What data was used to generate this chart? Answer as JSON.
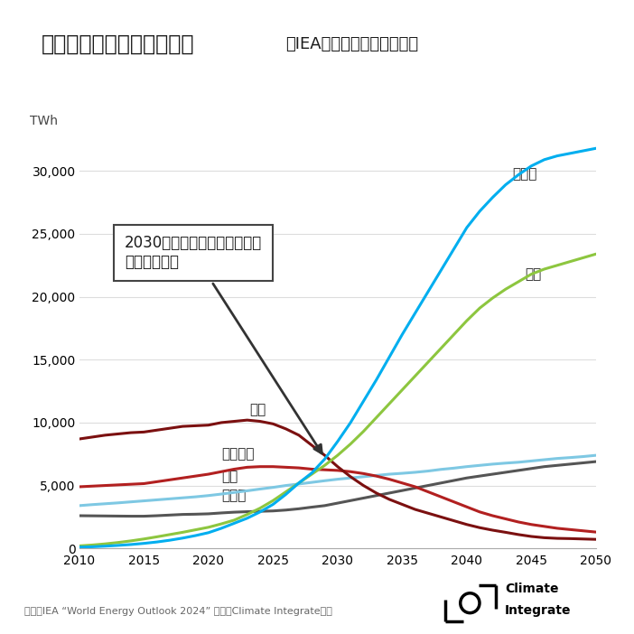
{
  "title_main": "世界の電源別の発電電力量",
  "title_sub": "（IEAネットゼロシナリオ）",
  "ylabel": "TWh",
  "source": "出典：IEA “World Energy Outlook 2024” を基にClimate Integrate作成",
  "years": [
    2010,
    2011,
    2012,
    2013,
    2014,
    2015,
    2016,
    2017,
    2018,
    2019,
    2020,
    2021,
    2022,
    2023,
    2024,
    2025,
    2026,
    2027,
    2028,
    2029,
    2030,
    2031,
    2032,
    2033,
    2034,
    2035,
    2036,
    2037,
    2038,
    2039,
    2040,
    2041,
    2042,
    2043,
    2044,
    2045,
    2046,
    2047,
    2048,
    2049,
    2050
  ],
  "solar": [
    100,
    130,
    180,
    240,
    310,
    400,
    510,
    650,
    820,
    1020,
    1250,
    1600,
    2000,
    2400,
    2900,
    3500,
    4300,
    5200,
    6000,
    7100,
    8500,
    10000,
    11700,
    13400,
    15200,
    17000,
    18700,
    20400,
    22100,
    23800,
    25500,
    26800,
    27900,
    28900,
    29700,
    30400,
    30900,
    31200,
    31400,
    31600,
    31800
  ],
  "wind": [
    200,
    270,
    360,
    470,
    600,
    750,
    920,
    1100,
    1280,
    1480,
    1680,
    1950,
    2250,
    2700,
    3200,
    3800,
    4500,
    5200,
    5900,
    6600,
    7400,
    8300,
    9300,
    10400,
    11500,
    12600,
    13700,
    14800,
    15900,
    17000,
    18100,
    19100,
    19900,
    20600,
    21200,
    21800,
    22200,
    22500,
    22800,
    23100,
    23400
  ],
  "coal": [
    8700,
    8850,
    9000,
    9100,
    9200,
    9250,
    9400,
    9550,
    9700,
    9750,
    9800,
    10000,
    10100,
    10200,
    10100,
    9900,
    9500,
    9000,
    8200,
    7400,
    6500,
    5700,
    5000,
    4400,
    3900,
    3500,
    3100,
    2800,
    2500,
    2200,
    1900,
    1650,
    1450,
    1280,
    1100,
    950,
    850,
    800,
    780,
    750,
    720
  ],
  "gas": [
    4900,
    4950,
    5000,
    5050,
    5100,
    5150,
    5300,
    5450,
    5600,
    5750,
    5900,
    6100,
    6300,
    6450,
    6500,
    6500,
    6450,
    6400,
    6300,
    6250,
    6200,
    6100,
    5950,
    5750,
    5500,
    5200,
    4900,
    4500,
    4100,
    3700,
    3300,
    2900,
    2600,
    2350,
    2100,
    1900,
    1750,
    1600,
    1500,
    1400,
    1300
  ],
  "hydro": [
    3400,
    3480,
    3550,
    3620,
    3700,
    3780,
    3860,
    3940,
    4020,
    4100,
    4200,
    4320,
    4450,
    4580,
    4720,
    4850,
    5000,
    5120,
    5250,
    5380,
    5500,
    5600,
    5700,
    5800,
    5900,
    5970,
    6050,
    6150,
    6280,
    6380,
    6500,
    6600,
    6700,
    6780,
    6850,
    6950,
    7050,
    7150,
    7220,
    7300,
    7400
  ],
  "nuclear": [
    2600,
    2590,
    2580,
    2570,
    2560,
    2560,
    2600,
    2650,
    2700,
    2720,
    2750,
    2820,
    2880,
    2920,
    2950,
    2980,
    3050,
    3150,
    3280,
    3400,
    3600,
    3800,
    4000,
    4200,
    4400,
    4600,
    4800,
    5000,
    5200,
    5400,
    5600,
    5750,
    5900,
    6050,
    6200,
    6350,
    6500,
    6600,
    6700,
    6800,
    6900
  ],
  "solar_color": "#00AEEF",
  "wind_color": "#8DC63F",
  "coal_color": "#7B1010",
  "gas_color": "#B22020",
  "hydro_color": "#7EC8E3",
  "nuclear_color": "#555555",
  "ylim": [
    0,
    32000
  ],
  "yticks": [
    0,
    5000,
    10000,
    15000,
    20000,
    25000,
    30000
  ],
  "annotation_text": "2030年までに太陽光と風力が\n石炭を上回る",
  "background_color": "#FFFFFF",
  "grid_color": "#DDDDDD"
}
